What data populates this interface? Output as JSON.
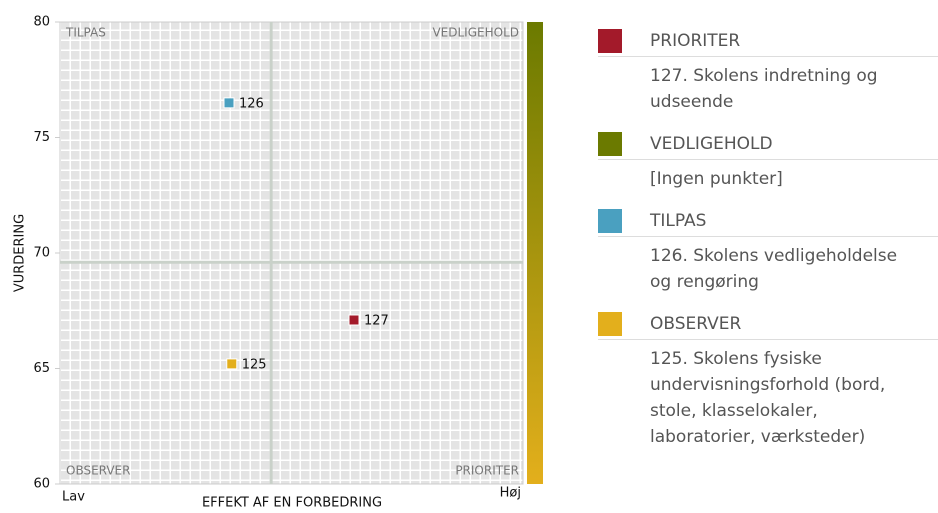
{
  "chart_data": {
    "type": "quadrant",
    "ylabel": "VURDERING",
    "xlabel": "EFFEKT AF EN FORBEDRING",
    "x_low_label": "Lav",
    "x_high_label": "Høj",
    "xlim": [
      0,
      100
    ],
    "ylim": [
      60,
      80
    ],
    "yticks": [
      60,
      65,
      70,
      75,
      80
    ],
    "divider_x": 45.6,
    "divider_y": 69.6,
    "quadrants": [
      {
        "name": "PRIORITER",
        "color": "#a31a2a",
        "corner": "bottom-right",
        "items": [
          "127. Skolens indretning og udseende"
        ]
      },
      {
        "name": "VEDLIGEHOLD",
        "color": "#6b7a00",
        "corner": "top-right",
        "items": [
          "[Ingen punkter]"
        ]
      },
      {
        "name": "TILPAS",
        "color": "#4aa0c0",
        "corner": "top-left",
        "items": [
          "126. Skolens vedligeholdelse og rengøring"
        ]
      },
      {
        "name": "OBSERVER",
        "color": "#e3af1c",
        "corner": "bottom-left",
        "items": [
          "125. Skolens fysiske undervisningsforhold (bord, stole, klasselokaler, laboratorier, værksteder)"
        ]
      }
    ],
    "points": [
      {
        "label": "126",
        "x": 36.5,
        "y": 76.5,
        "color": "#4aa0c0"
      },
      {
        "label": "127",
        "x": 63.5,
        "y": 67.1,
        "color": "#a31a2a"
      },
      {
        "label": "125",
        "x": 37.1,
        "y": 65.2,
        "color": "#e3af1c"
      }
    ]
  }
}
